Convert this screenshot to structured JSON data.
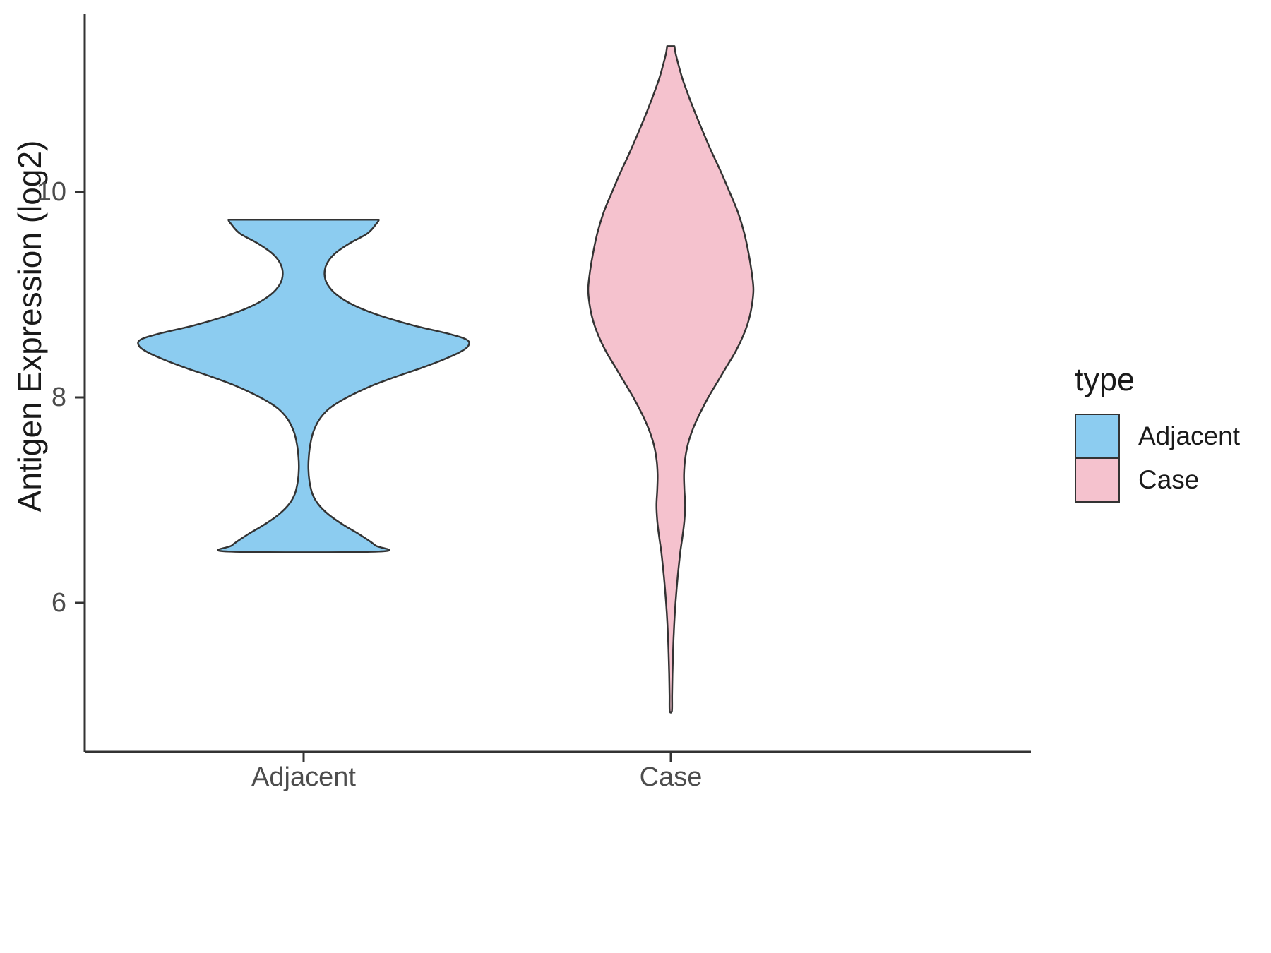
{
  "chart_data": {
    "type": "violin",
    "title": "",
    "xlabel": "",
    "ylabel": "Antigen Expression (log2)",
    "categories": [
      "Adjacent",
      "Case"
    ],
    "y_ticks": [
      10,
      8,
      6
    ],
    "ylim": [
      4.6,
      11.7
    ],
    "grid": false,
    "axis_color": "#333333",
    "outline_color": "#333333",
    "legend": {
      "title": "type",
      "position": "right",
      "entries": [
        {
          "label": "Adjacent",
          "color": "#8CCCF0"
        },
        {
          "label": "Case",
          "color": "#F5C2CE"
        }
      ]
    },
    "profile_format": "[expression_value_log2, half_width_as_fraction_of_category_spacing]",
    "violins": [
      {
        "name": "Adjacent",
        "color": "#8CCCF0",
        "center": 1,
        "summary": {
          "min": 6.5,
          "max": 9.73,
          "widest_at": 8.56,
          "neck_top": 9.2,
          "neck_bottom": 7.3
        },
        "profile": [
          [
            9.73,
            0.205
          ],
          [
            9.7,
            0.2
          ],
          [
            9.6,
            0.175
          ],
          [
            9.5,
            0.125
          ],
          [
            9.4,
            0.085
          ],
          [
            9.3,
            0.063
          ],
          [
            9.2,
            0.057
          ],
          [
            9.1,
            0.065
          ],
          [
            9.0,
            0.09
          ],
          [
            8.9,
            0.135
          ],
          [
            8.8,
            0.205
          ],
          [
            8.7,
            0.3
          ],
          [
            8.62,
            0.395
          ],
          [
            8.56,
            0.445
          ],
          [
            8.5,
            0.448
          ],
          [
            8.44,
            0.425
          ],
          [
            8.36,
            0.375
          ],
          [
            8.28,
            0.315
          ],
          [
            8.2,
            0.25
          ],
          [
            8.12,
            0.19
          ],
          [
            8.04,
            0.14
          ],
          [
            7.96,
            0.098
          ],
          [
            7.88,
            0.066
          ],
          [
            7.78,
            0.042
          ],
          [
            7.66,
            0.026
          ],
          [
            7.54,
            0.018
          ],
          [
            7.42,
            0.014
          ],
          [
            7.3,
            0.013
          ],
          [
            7.18,
            0.016
          ],
          [
            7.06,
            0.024
          ],
          [
            6.96,
            0.04
          ],
          [
            6.86,
            0.068
          ],
          [
            6.76,
            0.108
          ],
          [
            6.66,
            0.155
          ],
          [
            6.56,
            0.195
          ],
          [
            6.5,
            0.205
          ]
        ]
      },
      {
        "name": "Case",
        "color": "#F5C2CE",
        "center": 2,
        "summary": {
          "min": 4.95,
          "max": 11.42,
          "widest_at": 9.05,
          "lower_bump_at": 6.95
        },
        "profile": [
          [
            11.42,
            0.01
          ],
          [
            11.35,
            0.013
          ],
          [
            11.25,
            0.02
          ],
          [
            11.1,
            0.032
          ],
          [
            10.95,
            0.047
          ],
          [
            10.8,
            0.063
          ],
          [
            10.6,
            0.086
          ],
          [
            10.4,
            0.11
          ],
          [
            10.2,
            0.136
          ],
          [
            10.0,
            0.16
          ],
          [
            9.8,
            0.183
          ],
          [
            9.6,
            0.2
          ],
          [
            9.4,
            0.212
          ],
          [
            9.2,
            0.221
          ],
          [
            9.05,
            0.225
          ],
          [
            8.9,
            0.221
          ],
          [
            8.75,
            0.212
          ],
          [
            8.6,
            0.197
          ],
          [
            8.45,
            0.177
          ],
          [
            8.3,
            0.152
          ],
          [
            8.15,
            0.127
          ],
          [
            8.0,
            0.102
          ],
          [
            7.85,
            0.08
          ],
          [
            7.7,
            0.061
          ],
          [
            7.55,
            0.047
          ],
          [
            7.4,
            0.039
          ],
          [
            7.25,
            0.036
          ],
          [
            7.1,
            0.037
          ],
          [
            6.95,
            0.039
          ],
          [
            6.8,
            0.037
          ],
          [
            6.65,
            0.032
          ],
          [
            6.5,
            0.026
          ],
          [
            6.3,
            0.02
          ],
          [
            6.1,
            0.015
          ],
          [
            5.9,
            0.011
          ],
          [
            5.7,
            0.008
          ],
          [
            5.5,
            0.006
          ],
          [
            5.3,
            0.0045
          ],
          [
            5.1,
            0.0035
          ],
          [
            4.95,
            0.003
          ]
        ]
      }
    ]
  }
}
